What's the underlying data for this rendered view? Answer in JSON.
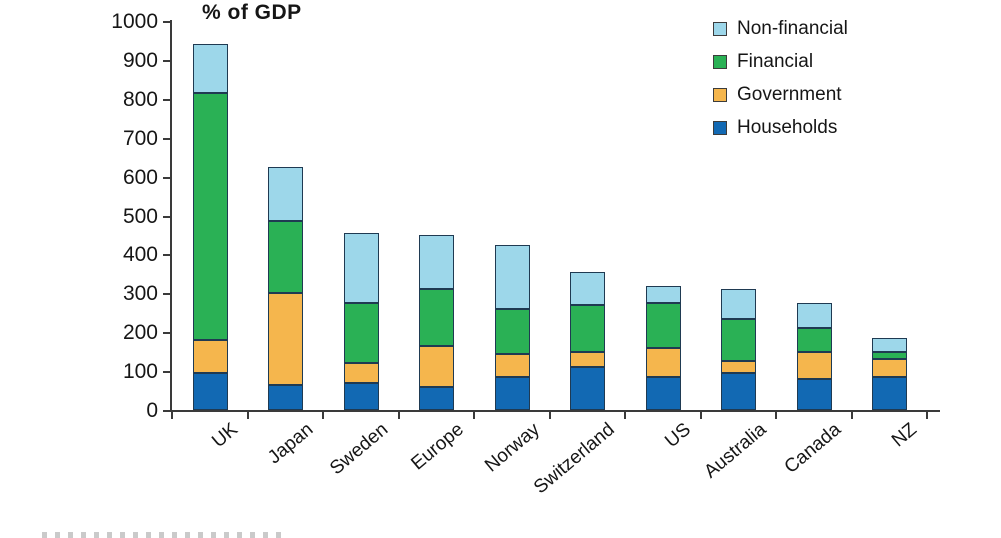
{
  "title": "% of GDP",
  "chart_data": {
    "type": "bar",
    "stacked": true,
    "title": "% of GDP",
    "categories": [
      "UK",
      "Japan",
      "Sweden",
      "Europe",
      "Norway",
      "Switzerland",
      "US",
      "Australia",
      "Canada",
      "NZ"
    ],
    "series": [
      {
        "name": "Households",
        "color": "#1269b3",
        "values": [
          95,
          65,
          70,
          60,
          85,
          110,
          85,
          95,
          80,
          85
        ]
      },
      {
        "name": "Government",
        "color": "#f5b64d",
        "values": [
          85,
          235,
          50,
          105,
          60,
          40,
          75,
          30,
          70,
          45
        ]
      },
      {
        "name": "Financial",
        "color": "#2ab155",
        "values": [
          635,
          185,
          155,
          145,
          115,
          120,
          115,
          110,
          60,
          20
        ]
      },
      {
        "name": "Non-financial",
        "color": "#9dd7ea",
        "values": [
          125,
          140,
          180,
          140,
          165,
          85,
          45,
          75,
          65,
          35
        ]
      }
    ],
    "totals": [
      940,
      625,
      455,
      450,
      425,
      355,
      320,
      310,
      275,
      185
    ],
    "ylim": [
      0,
      1000
    ],
    "yticks": [
      0,
      100,
      200,
      300,
      400,
      500,
      600,
      700,
      800,
      900,
      1000
    ],
    "grid": false,
    "legend_position": "top-right",
    "legend_order": [
      "Non-financial",
      "Financial",
      "Government",
      "Households"
    ],
    "bar_outline_color": "#1f3a52",
    "axis_color": "#3a3a3a"
  }
}
